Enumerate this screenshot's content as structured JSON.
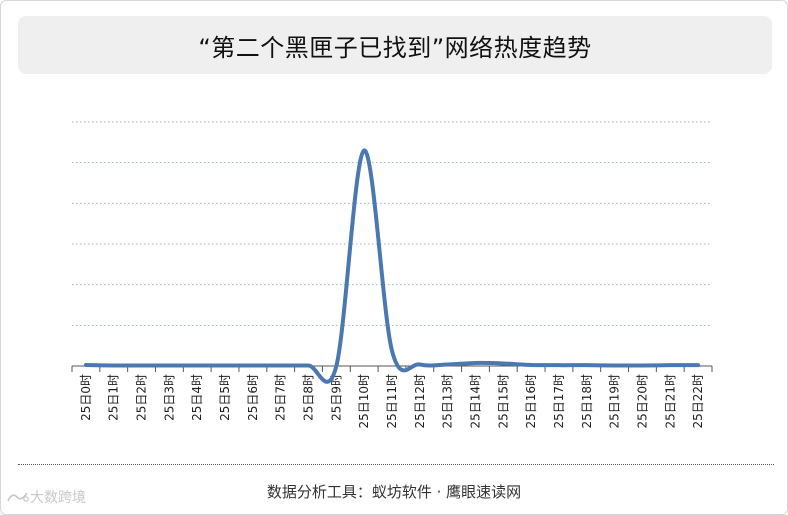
{
  "title": "“第二个黑匣子已找到”网络热度趋势",
  "footer": "数据分析工具：蚁坊软件 · 鹰眼速读网",
  "watermark": "大数跨境",
  "colors": {
    "line": "#4a78b0",
    "grid": "#9fb3c8",
    "axis": "#555555",
    "title_bg": "#efefef"
  },
  "chart_data": {
    "type": "line",
    "title": "“第二个黑匣子已找到”网络热度趋势",
    "xlabel": "",
    "ylabel": "",
    "categories": [
      "25日0时",
      "25日1时",
      "25日2时",
      "25日3时",
      "25日4时",
      "25日5时",
      "25日6时",
      "25日7时",
      "25日8时",
      "25日9时",
      "25日10时",
      "25日11时",
      "25日12时",
      "25日13时",
      "25日14时",
      "25日15时",
      "25日16时",
      "25日17时",
      "25日18时",
      "25日19时",
      "25日20时",
      "25日21时",
      "25日22时"
    ],
    "series": [
      {
        "values": [
          1,
          0.5,
          0.5,
          0.5,
          0.5,
          0.5,
          0.5,
          0.5,
          0.5,
          0,
          212,
          15,
          1.5,
          1.5,
          3,
          2.5,
          1,
          0.8,
          0.8,
          0.5,
          0.5,
          0.8,
          0.8
        ]
      }
    ],
    "ylim": [
      0,
      240
    ],
    "y_gridlines": 6,
    "grid": true,
    "legend": "none"
  }
}
